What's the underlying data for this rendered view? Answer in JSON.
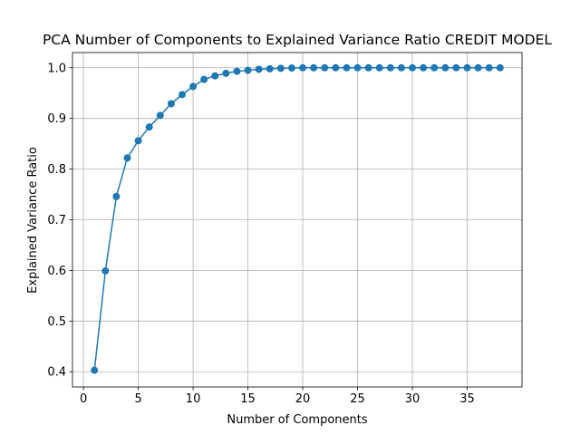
{
  "chart_data": {
    "type": "line",
    "title": "PCA Number of Components to Explained Variance Ratio CREDIT MODEL",
    "xlabel": "Number of Components",
    "ylabel": "Explained Variance Ratio",
    "xlim": [
      -1,
      40
    ],
    "ylim": [
      0.37,
      1.03
    ],
    "xticks": [
      0,
      5,
      10,
      15,
      20,
      25,
      30,
      35
    ],
    "yticks": [
      0.4,
      0.5,
      0.6,
      0.7,
      0.8,
      0.9,
      1.0
    ],
    "grid": true,
    "marker": "circle",
    "series": [
      {
        "color": "#1f77b4",
        "x": [
          1,
          2,
          3,
          4,
          5,
          6,
          7,
          8,
          9,
          10,
          11,
          12,
          13,
          14,
          15,
          16,
          17,
          18,
          19,
          20,
          21,
          22,
          23,
          24,
          25,
          26,
          27,
          28,
          29,
          30,
          31,
          32,
          33,
          34,
          35,
          36,
          37,
          38
        ],
        "y": [
          0.403,
          0.599,
          0.746,
          0.822,
          0.856,
          0.883,
          0.906,
          0.929,
          0.947,
          0.963,
          0.977,
          0.984,
          0.989,
          0.993,
          0.995,
          0.997,
          0.998,
          0.999,
          0.9995,
          1.0,
          1.0,
          1.0,
          1.0,
          1.0,
          1.0,
          1.0,
          1.0,
          1.0,
          1.0,
          1.0,
          1.0,
          1.0,
          1.0,
          1.0,
          1.0,
          1.0,
          1.0,
          1.0
        ]
      }
    ]
  }
}
